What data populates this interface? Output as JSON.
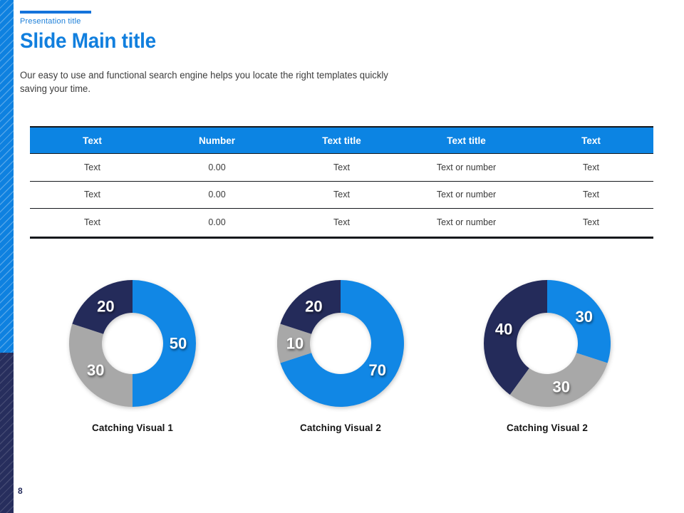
{
  "header": {
    "eyebrow": "Presentation title",
    "title": "Slide Main title",
    "body": "Our easy to use and functional search engine helps you locate the right templates quickly\nsaving your time."
  },
  "table": {
    "columns": [
      "Text",
      "Number",
      "Text title",
      "Text title",
      "Text"
    ],
    "rows": [
      [
        "Text",
        "0.00",
        "Text",
        "Text or number",
        "Text"
      ],
      [
        "Text",
        "0.00",
        "Text",
        "Text or number",
        "Text"
      ],
      [
        "Text",
        "0.00",
        "Text",
        "Text or number",
        "Text"
      ]
    ]
  },
  "chart_data": [
    {
      "type": "donut",
      "caption": "Catching Visual 1",
      "start_angle_deg": 0,
      "direction": "clockwise",
      "segments": [
        {
          "label": "blue",
          "value": 50,
          "color": "#1187E5"
        },
        {
          "label": "gray",
          "value": 30,
          "color": "#A8A8A8"
        },
        {
          "label": "navy",
          "value": 20,
          "color": "#242B5A"
        }
      ]
    },
    {
      "type": "donut",
      "caption": "Catching Visual 2",
      "start_angle_deg": 0,
      "direction": "clockwise",
      "segments": [
        {
          "label": "blue",
          "value": 70,
          "color": "#1187E5"
        },
        {
          "label": "gray",
          "value": 10,
          "color": "#A8A8A8"
        },
        {
          "label": "navy",
          "value": 20,
          "color": "#242B5A"
        }
      ]
    },
    {
      "type": "donut",
      "caption": "Catching Visual 2",
      "start_angle_deg": 0,
      "direction": "clockwise",
      "segments": [
        {
          "label": "blue",
          "value": 30,
          "color": "#1187E5"
        },
        {
          "label": "gray",
          "value": 30,
          "color": "#A8A8A8"
        },
        {
          "label": "navy",
          "value": 40,
          "color": "#242B5A"
        }
      ]
    }
  ],
  "footer": {
    "page_number": "8"
  },
  "colors": {
    "accent_blue": "#1573DB",
    "title_blue": "#117FDE",
    "table_header_blue": "#0C84E3",
    "donut_blue": "#1187E5",
    "donut_navy": "#242B5A",
    "donut_gray": "#A8A8A8",
    "sidebar_blue": "#0E81E0",
    "sidebar_navy": "#272E5D"
  }
}
